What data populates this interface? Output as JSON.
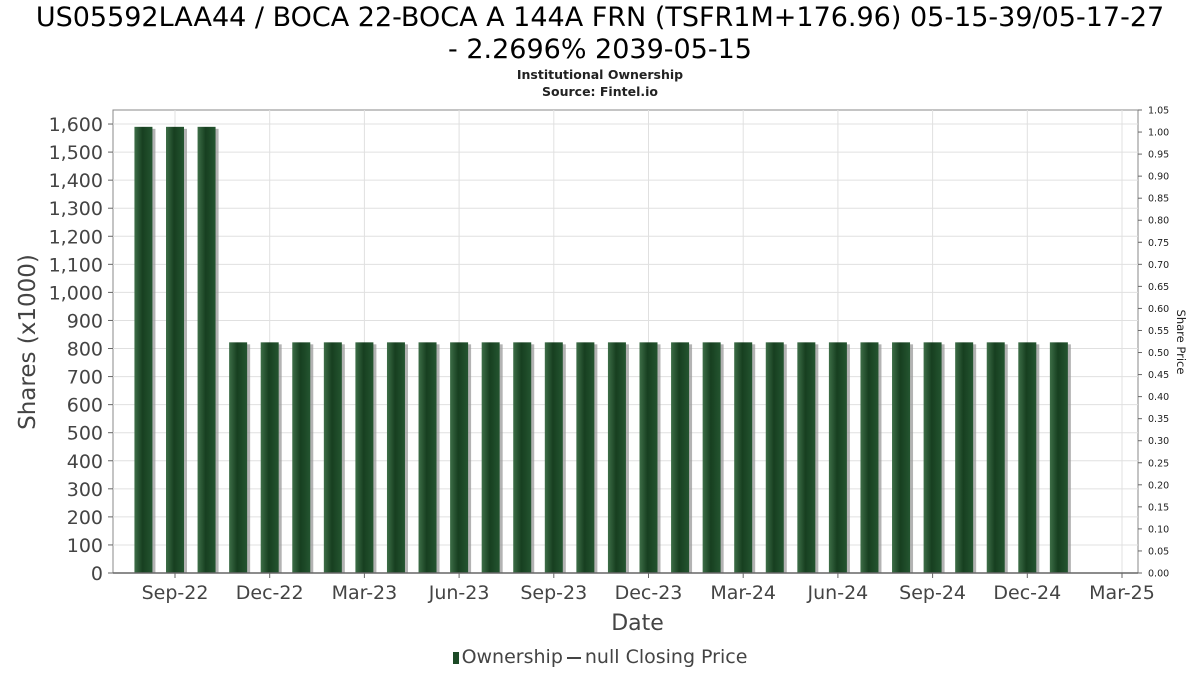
{
  "chart_data": {
    "type": "bar",
    "title_line1": "US05592LAA44 / BOCA 22-BOCA A 144A FRN (TSFR1M+176.96) 05-15-39/05-17-27",
    "title_line2": "- 2.2696% 2039-05-15",
    "subtitle_line1": "Institutional Ownership",
    "subtitle_line2": "Source: Fintel.io",
    "xlabel": "Date",
    "ylabel": "Shares (x1000)",
    "y2label": "Share Price",
    "ylim": [
      0,
      1650
    ],
    "y2lim": [
      0,
      1.05
    ],
    "yticks": [
      "0",
      "100",
      "200",
      "300",
      "400",
      "500",
      "600",
      "700",
      "800",
      "900",
      "1,000",
      "1,100",
      "1,200",
      "1,300",
      "1,400",
      "1,500",
      "1,600"
    ],
    "y2ticks": [
      "0.00",
      "0.05",
      "0.10",
      "0.15",
      "0.20",
      "0.25",
      "0.30",
      "0.35",
      "0.40",
      "0.45",
      "0.50",
      "0.55",
      "0.60",
      "0.65",
      "0.70",
      "0.75",
      "0.80",
      "0.85",
      "0.90",
      "0.95",
      "1.00",
      "1.05"
    ],
    "xticks": [
      "Sep-22",
      "Dec-22",
      "Mar-23",
      "Jun-23",
      "Sep-23",
      "Dec-23",
      "Mar-24",
      "Jun-24",
      "Sep-24",
      "Dec-24",
      "Mar-25"
    ],
    "series": [
      {
        "name": "Ownership",
        "values": [
          1590,
          1590,
          1590,
          822,
          822,
          822,
          822,
          822,
          822,
          822,
          822,
          822,
          822,
          822,
          822,
          822,
          822,
          822,
          822,
          822,
          822,
          822,
          822,
          822,
          822,
          822,
          822,
          822,
          822,
          822
        ]
      }
    ],
    "legend": [
      "Ownership",
      "null Closing Price"
    ],
    "legend_position": "bottom",
    "grid": true,
    "colors": {
      "bar": "#1c4a26",
      "bar_shadow": "#9a9a9a",
      "grid": "#e0e0e0",
      "axis": "#888888"
    }
  }
}
